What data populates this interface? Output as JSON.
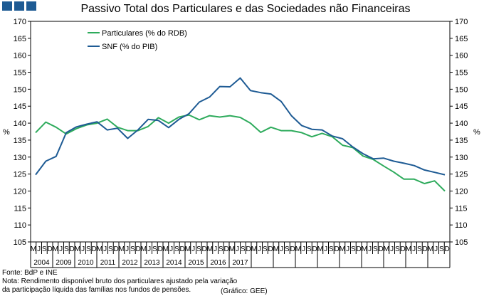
{
  "brand": {
    "colors": [
      "#1e5b94",
      "#1e5b94",
      "#1e5b94"
    ]
  },
  "chart_data": {
    "type": "line",
    "title": "Passivo Total dos Particulares e das Sociedades não Financeiras",
    "ylabel_left": "%",
    "ylabel_right": "%",
    "ylim": [
      105,
      170
    ],
    "yticks": [
      105,
      110,
      115,
      120,
      125,
      130,
      135,
      140,
      145,
      150,
      155,
      160,
      165,
      170
    ],
    "grid": false,
    "legend_position": "top-left",
    "quarter_labels": [
      "M",
      "J",
      "S",
      "D",
      "M",
      "J",
      "S",
      "D",
      "M",
      "J",
      "S",
      "D",
      "M",
      "J",
      "S",
      "D",
      "M",
      "J",
      "S",
      "D",
      "M",
      "J",
      "S",
      "D",
      "M",
      "J",
      "S",
      "D",
      "M",
      "J",
      "S",
      "D",
      "M",
      "J",
      "S",
      "D",
      "M",
      "J",
      "S",
      "D",
      "M",
      "J",
      "S",
      "D",
      "M",
      "J",
      "S",
      "D",
      "M",
      "J",
      "S",
      "D",
      "M",
      "J",
      "S",
      "D",
      "M",
      "J",
      "S",
      "D",
      "M",
      "J",
      "S",
      "D",
      "M",
      "J",
      "S",
      "D",
      "M",
      "J",
      "S",
      "D",
      "M",
      "J",
      "S",
      "D"
    ],
    "years": [
      "2004",
      "2009",
      "2010",
      "2011",
      "2012",
      "2013",
      "2014",
      "2015",
      "2016",
      "2017"
    ],
    "series": [
      {
        "name": "Particulares (% do RDB)",
        "color": "#2eab5c",
        "values": [
          137.2,
          140.3,
          138.8,
          136.8,
          138.4,
          139.5,
          140.0,
          141.2,
          138.8,
          137.8,
          137.8,
          139.0,
          141.6,
          140.0,
          141.8,
          142.4,
          141.0,
          142.2,
          141.8,
          142.2,
          141.7,
          140.0,
          137.3,
          138.8,
          137.8,
          137.8,
          137.2,
          136.0,
          137.0,
          136.0,
          133.5,
          132.8,
          130.3,
          129.3,
          127.4,
          125.6,
          123.5,
          123.5,
          122.2,
          123.0,
          120.0
        ]
      },
      {
        "name": "SNF (% do PIB)",
        "color": "#1e5b94",
        "values": [
          124.8,
          128.8,
          130.2,
          137.2,
          138.9,
          139.7,
          140.4,
          138.0,
          138.5,
          135.5,
          138.0,
          141.1,
          140.8,
          138.7,
          141.1,
          142.8,
          146.2,
          147.7,
          150.8,
          150.7,
          153.3,
          149.6,
          149.0,
          148.6,
          146.4,
          142.2,
          139.3,
          138.2,
          138.0,
          136.2,
          135.4,
          133.0,
          131.0,
          129.5,
          129.7,
          128.8,
          128.2,
          127.5,
          126.2,
          125.5,
          124.8
        ]
      }
    ]
  },
  "footer": {
    "source": "Fonte: BdP e INE",
    "note_line1": "Nota: Rendimento disponível bruto dos particulares ajustado pela variação",
    "note_line2": " da participação líquida das famílias nos fundos de pensões.",
    "credit": "(Gráfico: GEE)"
  }
}
